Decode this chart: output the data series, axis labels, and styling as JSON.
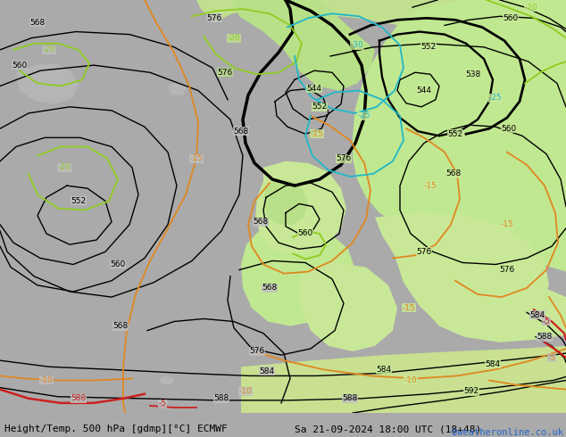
{
  "title_left": "Height/Temp. 500 hPa [gdmp][°C] ECMWF",
  "title_right": "Sa 21-09-2024 18:00 UTC (18+48)",
  "copyright": "©weatheronline.co.uk",
  "fig_width": 6.34,
  "fig_height": 4.9,
  "dpi": 100,
  "title_fontsize": 8.0,
  "copyright_fontsize": 7.5,
  "label_fontsize": 6.5,
  "gray_bg": "#c8c8c8",
  "green_bg": "#c8e8a0",
  "green_dark": "#a8d880",
  "land_gray": "#b8b8b8",
  "orange_color": "#e08820",
  "green_contour": "#90cc20",
  "cyan_color": "#20b8c8",
  "red_color": "#cc2020",
  "black_lw": 1.0,
  "thick_lw": 2.5,
  "temp_lw": 1.3
}
